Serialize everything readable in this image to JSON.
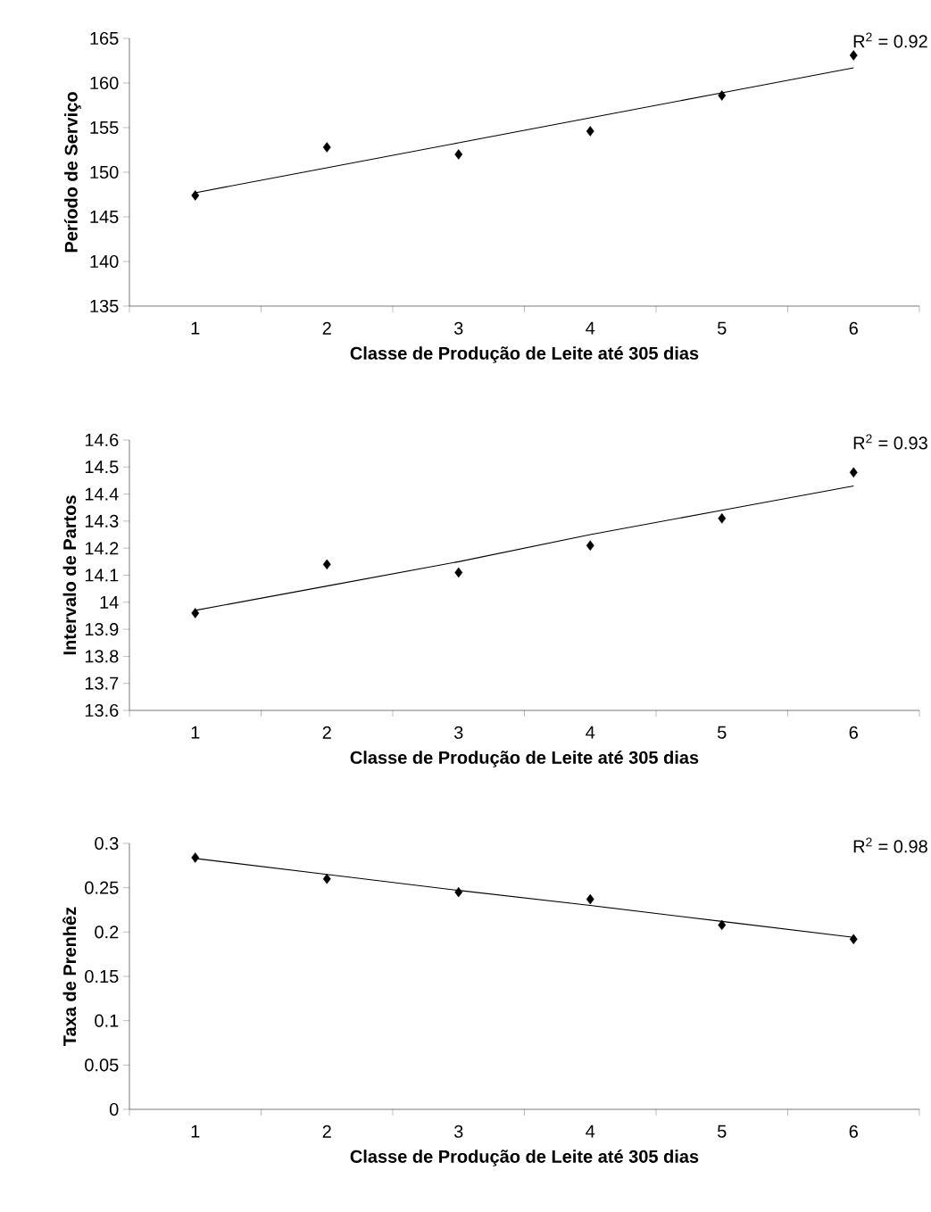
{
  "chart_data": [
    {
      "type": "scatter",
      "xlabel": "Classe de Produção de Leite até 305 dias",
      "ylabel": "Período de Serviço",
      "categories": [
        "1",
        "2",
        "3",
        "4",
        "5",
        "6"
      ],
      "ylim": [
        135,
        165
      ],
      "yticks": [
        135,
        140,
        145,
        150,
        155,
        160,
        165
      ],
      "annotations": [
        "R$^{2}$ = 0.92"
      ],
      "series": [
        {
          "color": "#000000",
          "marker": "diamond",
          "values": [
            147.4,
            152.8,
            152.0,
            154.6,
            158.6,
            163.1
          ]
        },
        {
          "type": "line",
          "color": "#000000",
          "values": [
            147.7,
            150.5,
            153.3,
            156.1,
            158.9,
            161.7
          ]
        }
      ]
    },
    {
      "type": "scatter",
      "xlabel": "Classe de Produção de Leite até 305 dias",
      "ylabel": "Intervalo de Partos",
      "categories": [
        "1",
        "2",
        "3",
        "4",
        "5",
        "6"
      ],
      "ylim": [
        13.6,
        14.6
      ],
      "yticks": [
        13.6,
        13.7,
        13.8,
        13.9,
        {
          "value": 14,
          "label": "14"
        },
        14.1,
        14.2,
        14.3,
        14.4,
        14.5,
        14.6
      ],
      "annotations": [
        "R$^{2}$ = 0.93"
      ],
      "series": [
        {
          "color": "#000000",
          "marker": "diamond",
          "values": [
            13.96,
            14.14,
            14.11,
            14.21,
            14.31,
            14.48
          ]
        },
        {
          "type": "line",
          "color": "#000000",
          "values": [
            13.97,
            14.06,
            14.15,
            14.25,
            14.34,
            14.43
          ]
        }
      ]
    },
    {
      "type": "scatter",
      "xlabel": "Classe de Produção de Leite até 305 dias",
      "ylabel": "Taxa de Prenhêz",
      "categories": [
        "1",
        "2",
        "3",
        "4",
        "5",
        "6"
      ],
      "ylim": [
        0,
        0.3
      ],
      "yticks": [
        0,
        0.05,
        0.1,
        0.15,
        0.2,
        0.25,
        0.3
      ],
      "annotations": [
        "R$^{2}$ = 0.98"
      ],
      "series": [
        {
          "color": "#000000",
          "marker": "diamond",
          "values": [
            0.284,
            0.26,
            0.245,
            0.237,
            0.208,
            0.192
          ]
        },
        {
          "type": "line",
          "color": "#000000",
          "values": [
            0.283,
            0.265,
            0.247,
            0.23,
            0.212,
            0.194
          ]
        }
      ]
    }
  ]
}
